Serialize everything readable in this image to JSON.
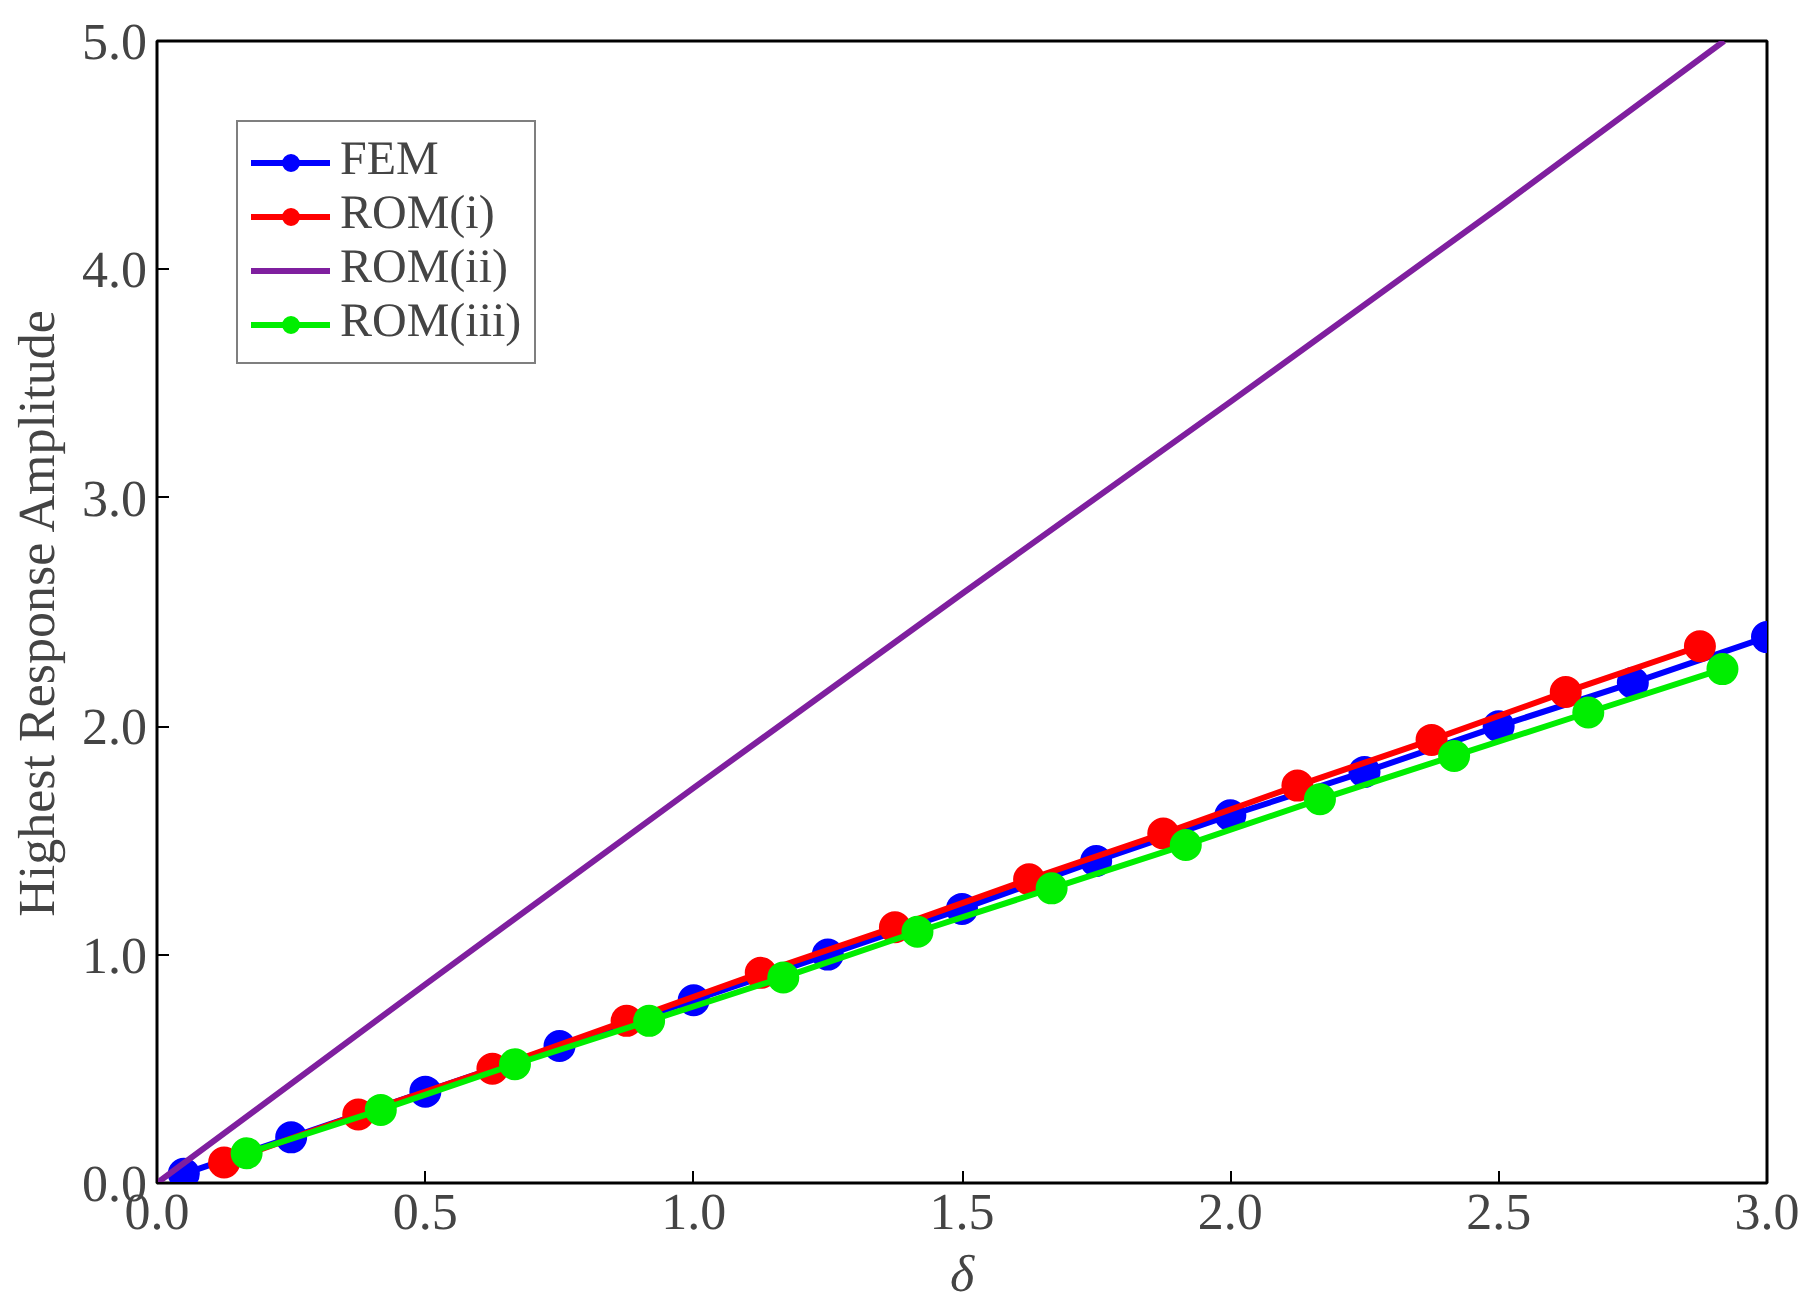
{
  "chart_data": {
    "type": "line",
    "xlabel": "δ",
    "ylabel": "Highest Response Amplitude",
    "xlim": [
      0,
      3
    ],
    "ylim": [
      0,
      5
    ],
    "xticks": [
      {
        "value": 0,
        "label": "0.0"
      },
      {
        "value": 0.5,
        "label": "0.5"
      },
      {
        "value": 1,
        "label": "1.0"
      },
      {
        "value": 1.5,
        "label": "1.5"
      },
      {
        "value": 2,
        "label": "2.0"
      },
      {
        "value": 2.5,
        "label": "2.5"
      },
      {
        "value": 3,
        "label": "3.0"
      }
    ],
    "yticks": [
      {
        "value": 0,
        "label": "0.0"
      },
      {
        "value": 1,
        "label": "1.0"
      },
      {
        "value": 2,
        "label": "2.0"
      },
      {
        "value": 3,
        "label": "3.0"
      },
      {
        "value": 4,
        "label": "4.0"
      },
      {
        "value": 5,
        "label": "5.0"
      }
    ],
    "grid": false,
    "legend": "top left",
    "series": [
      {
        "name": "FEM",
        "color": "#0000ff",
        "marker": "circle",
        "x": [
          0.05,
          0.25,
          0.5,
          0.75,
          1.0,
          1.25,
          1.5,
          1.75,
          2.0,
          2.25,
          2.5,
          2.75,
          3.0
        ],
        "values": [
          0.04,
          0.2,
          0.4,
          0.6,
          0.8,
          1.0,
          1.2,
          1.41,
          1.61,
          1.8,
          2.0,
          2.19,
          2.39
        ]
      },
      {
        "name": "ROM(i)",
        "color": "#ff0000",
        "marker": "circle",
        "x": [
          0.125,
          0.375,
          0.625,
          0.875,
          1.125,
          1.375,
          1.625,
          1.875,
          2.125,
          2.375,
          2.625,
          2.875
        ],
        "values": [
          0.09,
          0.3,
          0.5,
          0.71,
          0.92,
          1.12,
          1.33,
          1.53,
          1.74,
          1.94,
          2.15,
          2.35
        ]
      },
      {
        "name": "ROM(ii)",
        "color": "#7f1f9f",
        "marker": "none",
        "x": [
          0,
          0.5,
          1.0,
          1.5,
          2.0,
          2.5,
          2.92
        ],
        "values": [
          0,
          0.87,
          1.73,
          2.58,
          3.42,
          4.27,
          5.0
        ]
      },
      {
        "name": "ROM(iii)",
        "color": "#00ee00",
        "marker": "circle",
        "x": [
          0.167,
          0.417,
          0.667,
          0.917,
          1.167,
          1.417,
          1.667,
          1.917,
          2.167,
          2.417,
          2.667,
          2.917
        ],
        "values": [
          0.13,
          0.32,
          0.52,
          0.71,
          0.9,
          1.1,
          1.29,
          1.48,
          1.68,
          1.87,
          2.06,
          2.25
        ]
      }
    ]
  }
}
